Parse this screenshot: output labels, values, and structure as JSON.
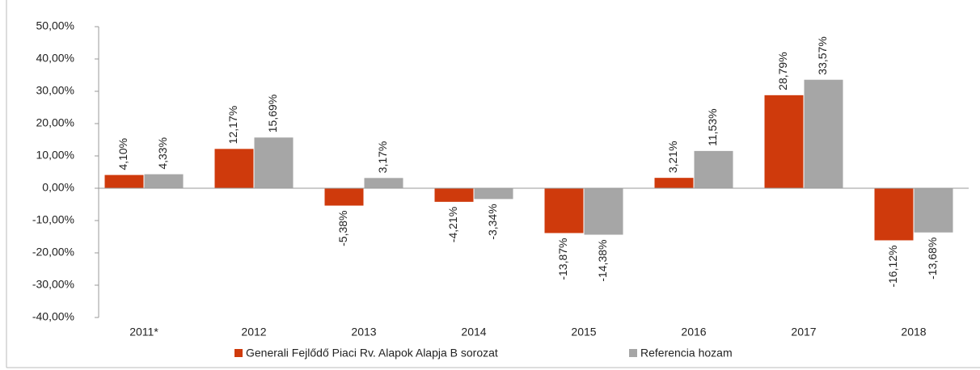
{
  "chart_data": {
    "type": "bar",
    "categories": [
      "2011*",
      "2012",
      "2013",
      "2014",
      "2015",
      "2016",
      "2017",
      "2018"
    ],
    "series": [
      {
        "name": "Generali Fejlődő Piaci Rv. Alapok Alapja B sorozat",
        "color": "#cf3a0c",
        "values": [
          4.1,
          12.17,
          -5.38,
          -4.21,
          -13.87,
          3.21,
          28.79,
          -16.12
        ],
        "value_labels": [
          "4,10%",
          "12,17%",
          "-5,38%",
          "-4,21%",
          "-13,87%",
          "3,21%",
          "28,79%",
          "-16,12%"
        ]
      },
      {
        "name": "Referencia hozam",
        "color": "#a6a6a6",
        "values": [
          4.33,
          15.69,
          3.17,
          -3.34,
          -14.38,
          11.53,
          33.57,
          -13.68
        ],
        "value_labels": [
          "4,33%",
          "15,69%",
          "3,17%",
          "-3,34%",
          "-14,38%",
          "11,53%",
          "33,57%",
          "-13,68%"
        ]
      }
    ],
    "ylim": [
      -40,
      50
    ],
    "yticks": [
      {
        "value": 50,
        "label": "50,00%"
      },
      {
        "value": 40,
        "label": "40,00%"
      },
      {
        "value": 30,
        "label": "30,00%"
      },
      {
        "value": 20,
        "label": "20,00%"
      },
      {
        "value": 10,
        "label": "10,00%"
      },
      {
        "value": 0,
        "label": "0,00%"
      },
      {
        "value": -10,
        "label": "-10,00%"
      },
      {
        "value": -20,
        "label": "-20,00%"
      },
      {
        "value": -30,
        "label": "-30,00%"
      },
      {
        "value": -40,
        "label": "-40,00%"
      }
    ],
    "grid": false,
    "legend": "bottom"
  }
}
